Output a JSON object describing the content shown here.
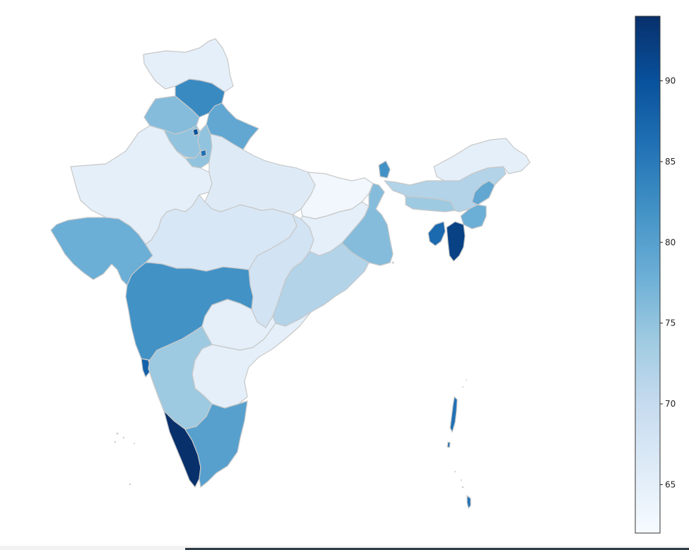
{
  "chart_data": {
    "type": "choropleth",
    "colormap": "Blues",
    "colorbar": {
      "min": 62,
      "max": 94,
      "ticks": [
        65,
        70,
        75,
        80,
        85,
        90
      ],
      "tick_labels": [
        "65",
        "70",
        "75",
        "80",
        "85",
        "90"
      ]
    },
    "regions": [
      {
        "name": "ladakh",
        "value": 65
      },
      {
        "name": "jammu-kashmir",
        "value": 83
      },
      {
        "name": "himachal-pradesh",
        "value": 76
      },
      {
        "name": "punjab",
        "value": 75
      },
      {
        "name": "chandigarh",
        "value": 90
      },
      {
        "name": "uttarakhand",
        "value": 79
      },
      {
        "name": "haryana",
        "value": 75
      },
      {
        "name": "delhi",
        "value": 86
      },
      {
        "name": "rajasthan",
        "value": 65
      },
      {
        "name": "uttar-pradesh",
        "value": 66
      },
      {
        "name": "bihar",
        "value": 63
      },
      {
        "name": "gujarat",
        "value": 78
      },
      {
        "name": "madhya-pradesh",
        "value": 67
      },
      {
        "name": "chhattisgarh",
        "value": 68
      },
      {
        "name": "jharkhand",
        "value": 65
      },
      {
        "name": "west-bengal",
        "value": 76
      },
      {
        "name": "odisha",
        "value": 72
      },
      {
        "name": "maharashtra",
        "value": 82
      },
      {
        "name": "telangana",
        "value": 65
      },
      {
        "name": "andhra-pradesh",
        "value": 65
      },
      {
        "name": "karnataka",
        "value": 74
      },
      {
        "name": "goa",
        "value": 88
      },
      {
        "name": "kerala",
        "value": 94
      },
      {
        "name": "tamil-nadu",
        "value": 80
      },
      {
        "name": "sikkim",
        "value": 82
      },
      {
        "name": "arunachal-pradesh",
        "value": 65
      },
      {
        "name": "assam",
        "value": 72
      },
      {
        "name": "meghalaya",
        "value": 74
      },
      {
        "name": "nagaland",
        "value": 79
      },
      {
        "name": "manipur",
        "value": 78
      },
      {
        "name": "mizoram",
        "value": 92
      },
      {
        "name": "tripura",
        "value": 87
      },
      {
        "name": "andaman-nicobar",
        "value": 86
      }
    ]
  }
}
